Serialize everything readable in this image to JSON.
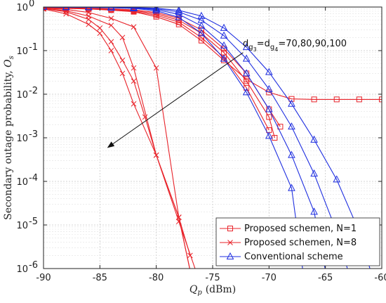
{
  "chart_data": {
    "type": "line",
    "xlabel_main": "Q",
    "xlabel_sub": "p",
    "xlabel_unit": "(dBm)",
    "ylabel_text": "Secondary outage probability, ",
    "ylabel_sym": "O",
    "ylabel_sub": "s",
    "xlim": [
      -90,
      -60
    ],
    "ylim": [
      1e-06,
      1
    ],
    "yscale": "log",
    "grid": true,
    "x_ticks": [
      -90,
      -85,
      -80,
      -75,
      -70,
      -65,
      -60
    ],
    "x_tick_labels": [
      "-90",
      "-85",
      "-80",
      "-75",
      "-70",
      "-65",
      "-60"
    ],
    "y_ticks": [
      1e-06,
      1e-05,
      0.0001,
      0.001,
      0.01,
      0.1,
      1
    ],
    "y_tick_labels": [
      {
        "base": "10",
        "exp": "-6"
      },
      {
        "base": "10",
        "exp": "-5"
      },
      {
        "base": "10",
        "exp": "-4"
      },
      {
        "base": "10",
        "exp": "-3"
      },
      {
        "base": "10",
        "exp": "-2"
      },
      {
        "base": "10",
        "exp": "-1"
      },
      {
        "base": "10",
        "exp": "0"
      }
    ],
    "annotation": {
      "parts": [
        "d",
        "g",
        "3",
        "=d",
        "g",
        "4",
        "=70,80,90,100"
      ],
      "arrow_from": [
        -72.3,
        0.09
      ],
      "arrow_to": [
        -84.3,
        0.0006
      ]
    },
    "legend": {
      "placement": "bottom-right",
      "entries": [
        {
          "label": "Proposed schemen, N=1",
          "color": "#e8232a",
          "marker": "square"
        },
        {
          "label": "Proposed schemen, N=8",
          "color": "#e8232a",
          "marker": "x"
        },
        {
          "label": "Conventional scheme",
          "color": "#1f2fe0",
          "marker": "triangle"
        }
      ]
    },
    "series": [
      {
        "group": "Proposed schemen, N=1",
        "color": "#e8232a",
        "marker": "square",
        "x": [
          -90,
          -88,
          -86,
          -84,
          -82,
          -80,
          -78,
          -76,
          -74,
          -72,
          -70,
          -68,
          -66,
          -64,
          -62,
          -60
        ],
        "y": [
          0.95,
          0.93,
          0.9,
          0.85,
          0.78,
          0.6,
          0.4,
          0.17,
          0.06,
          0.022,
          0.011,
          0.0078,
          0.0076,
          0.0076,
          0.0076,
          0.0076
        ]
      },
      {
        "group": "Proposed schemen, N=1",
        "color": "#e8232a",
        "marker": "square",
        "x": [
          -90,
          -88,
          -86,
          -84,
          -82,
          -80,
          -78,
          -76,
          -74,
          -72,
          -70
        ],
        "y": [
          0.96,
          0.94,
          0.91,
          0.87,
          0.8,
          0.65,
          0.45,
          0.2,
          0.07,
          0.014,
          0.0015
        ]
      },
      {
        "group": "Proposed schemen, N=1",
        "color": "#e8232a",
        "marker": "square",
        "x": [
          -90,
          -88,
          -86,
          -84,
          -82,
          -80,
          -78,
          -76,
          -74,
          -72,
          -70,
          -69.5
        ],
        "y": [
          0.97,
          0.95,
          0.93,
          0.89,
          0.83,
          0.7,
          0.5,
          0.25,
          0.09,
          0.02,
          0.003,
          0.001
        ]
      },
      {
        "group": "Proposed schemen, N=1",
        "color": "#e8232a",
        "marker": "square",
        "x": [
          -90,
          -88,
          -86,
          -84,
          -82,
          -80,
          -78,
          -76,
          -74,
          -72,
          -70,
          -69
        ],
        "y": [
          0.98,
          0.96,
          0.94,
          0.91,
          0.86,
          0.75,
          0.55,
          0.3,
          0.11,
          0.03,
          0.0045,
          0.0018
        ]
      },
      {
        "group": "Proposed schemen, N=8",
        "color": "#e8232a",
        "marker": "x",
        "x": [
          -90,
          -88,
          -86,
          -85,
          -84,
          -83,
          -82,
          -80,
          -78,
          -77
        ],
        "y": [
          0.9,
          0.7,
          0.4,
          0.25,
          0.1,
          0.03,
          0.006,
          0.0004,
          1.5e-05,
          9e-07
        ]
      },
      {
        "group": "Proposed schemen, N=8",
        "color": "#e8232a",
        "marker": "x",
        "x": [
          -90,
          -88,
          -86,
          -85,
          -84,
          -83,
          -82,
          -81,
          -80,
          -78,
          -77
        ],
        "y": [
          0.92,
          0.78,
          0.52,
          0.33,
          0.16,
          0.06,
          0.02,
          0.003,
          0.0004,
          1.5e-05,
          9e-07
        ]
      },
      {
        "group": "Proposed schemen, N=8",
        "color": "#e8232a",
        "marker": "x",
        "x": [
          -90,
          -88,
          -86,
          -84,
          -83,
          -82,
          -80,
          -78,
          -76.5
        ],
        "y": [
          0.93,
          0.82,
          0.62,
          0.38,
          0.2,
          0.04,
          0.0004,
          1.2e-05,
          9e-07
        ]
      },
      {
        "group": "Proposed schemen, N=8",
        "color": "#e8232a",
        "marker": "x",
        "x": [
          -90,
          -88,
          -86,
          -84,
          -82,
          -80,
          -78,
          -77
        ],
        "y": [
          0.95,
          0.88,
          0.75,
          0.55,
          0.35,
          0.04,
          1.5e-05,
          2e-06
        ]
      },
      {
        "group": "Conventional scheme",
        "color": "#1f2fe0",
        "marker": "triangle",
        "x": [
          -90,
          -88,
          -86,
          -84,
          -82,
          -80,
          -78,
          -76,
          -74,
          -72,
          -70,
          -68,
          -67
        ],
        "y": [
          1.0,
          0.99,
          0.98,
          0.96,
          0.93,
          0.82,
          0.58,
          0.25,
          0.065,
          0.011,
          0.0011,
          7e-05,
          9e-07
        ]
      },
      {
        "group": "Conventional scheme",
        "color": "#1f2fe0",
        "marker": "triangle",
        "x": [
          -90,
          -88,
          -86,
          -84,
          -82,
          -80,
          -78,
          -76,
          -74,
          -72,
          -70,
          -68,
          -66,
          -65
        ],
        "y": [
          1.0,
          0.99,
          0.98,
          0.97,
          0.95,
          0.87,
          0.68,
          0.37,
          0.13,
          0.03,
          0.0045,
          0.0004,
          2e-05,
          9e-07
        ]
      },
      {
        "group": "Conventional scheme",
        "color": "#1f2fe0",
        "marker": "triangle",
        "x": [
          -90,
          -88,
          -86,
          -84,
          -82,
          -80,
          -78,
          -76,
          -74,
          -72,
          -70,
          -68,
          -66,
          -64,
          -63
        ],
        "y": [
          1.0,
          0.995,
          0.99,
          0.98,
          0.96,
          0.91,
          0.77,
          0.5,
          0.22,
          0.065,
          0.013,
          0.0018,
          0.00015,
          7e-06,
          9e-07
        ]
      },
      {
        "group": "Conventional scheme",
        "color": "#1f2fe0",
        "marker": "triangle",
        "x": [
          -90,
          -88,
          -86,
          -84,
          -82,
          -80,
          -78,
          -76,
          -74,
          -72,
          -70,
          -68,
          -66,
          -64,
          -62,
          -61
        ],
        "y": [
          1.0,
          0.995,
          0.99,
          0.985,
          0.97,
          0.94,
          0.84,
          0.62,
          0.33,
          0.12,
          0.032,
          0.006,
          0.0009,
          0.00011,
          7e-06,
          9e-07
        ]
      }
    ]
  }
}
